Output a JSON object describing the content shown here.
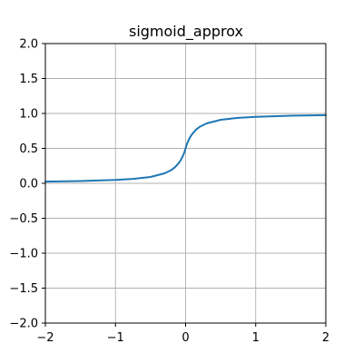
{
  "chart_data": {
    "type": "line",
    "title": "sigmoid_approx",
    "xlabel": "",
    "ylabel": "",
    "xlim": [
      -2,
      2
    ],
    "ylim": [
      -2,
      2
    ],
    "xticks": [
      -2,
      -1,
      0,
      1,
      2
    ],
    "yticks": [
      -2.0,
      -1.5,
      -1.0,
      -0.5,
      0.0,
      0.5,
      1.0,
      1.5,
      2.0
    ],
    "xtick_labels": [
      "−2",
      "−1",
      "0",
      "1",
      "2"
    ],
    "ytick_labels": [
      "−2.0",
      "−1.5",
      "−1.0",
      "−0.5",
      "0.0",
      "0.5",
      "1.0",
      "1.5",
      "2.0"
    ],
    "grid": true,
    "series": [
      {
        "color": "#1f77b4",
        "x": [
          -2.0,
          -1.5,
          -1.0,
          -0.75,
          -0.5,
          -0.3,
          -0.2,
          -0.15,
          -0.1,
          -0.07,
          -0.05,
          -0.03,
          -0.02,
          -0.01,
          0.0,
          0.01,
          0.02,
          0.03,
          0.05,
          0.07,
          0.1,
          0.15,
          0.2,
          0.3,
          0.5,
          0.75,
          1.0,
          1.5,
          2.0
        ],
        "y": [
          0.024,
          0.032,
          0.048,
          0.063,
          0.091,
          0.143,
          0.192,
          0.231,
          0.286,
          0.33,
          0.368,
          0.412,
          0.437,
          0.465,
          0.5,
          0.535,
          0.563,
          0.588,
          0.632,
          0.67,
          0.714,
          0.769,
          0.808,
          0.857,
          0.909,
          0.937,
          0.952,
          0.968,
          0.976
        ]
      }
    ]
  }
}
